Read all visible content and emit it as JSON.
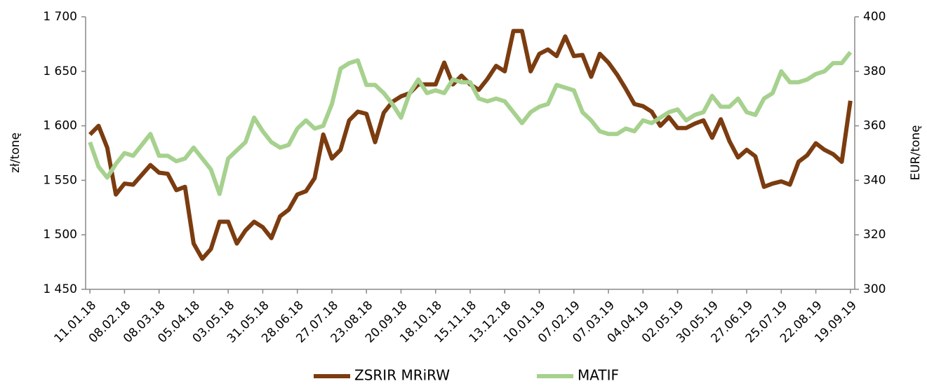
{
  "chart_data": {
    "type": "line",
    "categories": [
      "11.01.18",
      null,
      null,
      null,
      "08.02.18",
      null,
      null,
      null,
      "08.03.18",
      null,
      null,
      null,
      "05.04.18",
      null,
      null,
      null,
      "03.05.18",
      null,
      null,
      null,
      "31.05.18",
      null,
      null,
      null,
      "28.06.18",
      null,
      null,
      null,
      "27.07.18",
      null,
      null,
      null,
      "23.08.18",
      null,
      null,
      null,
      "20.09.18",
      null,
      null,
      null,
      "18.10.18",
      null,
      null,
      null,
      "15.11.18",
      null,
      null,
      null,
      "13.12.18",
      null,
      null,
      null,
      "10.01.19",
      null,
      null,
      null,
      "07.02.19",
      null,
      null,
      null,
      "07.03.19",
      null,
      null,
      null,
      "04.04.19",
      null,
      null,
      null,
      "02.05.19",
      null,
      null,
      null,
      "30.05.19",
      null,
      null,
      null,
      "27.06.19",
      null,
      null,
      null,
      "25.07.19",
      null,
      null,
      null,
      "22.08.19",
      null,
      null,
      null,
      "19.09.19"
    ],
    "series": [
      {
        "name": "ZSRIR MRiRW",
        "color": "#7b3c10",
        "axis": "y",
        "values": [
          1592,
          1600,
          1580,
          1537,
          1547,
          1546,
          1555,
          1564,
          1557,
          1556,
          1541,
          1544,
          1492,
          1478,
          1487,
          1512,
          1512,
          1492,
          1504,
          1512,
          1507,
          1497,
          1517,
          1523,
          1537,
          1540,
          1552,
          1592,
          1570,
          1578,
          1605,
          1613,
          1611,
          1585,
          1612,
          1622,
          1627,
          1630,
          1638,
          1638,
          1638,
          1658,
          1638,
          1646,
          1638,
          1633,
          1643,
          1655,
          1650,
          1687,
          1687,
          1650,
          1666,
          1670,
          1664,
          1682,
          1664,
          1665,
          1645,
          1666,
          1658,
          1647,
          1634,
          1620,
          1618,
          1613,
          1600,
          1608,
          1598,
          1598,
          1602,
          1605,
          1589,
          1606,
          1586,
          1571,
          1578,
          1572,
          1544,
          1547,
          1549,
          1546,
          1567,
          1573,
          1584,
          1578,
          1574,
          1567,
          1623
        ]
      },
      {
        "name": "MATIF",
        "color": "#a6d18e",
        "axis": "y2",
        "values": [
          354,
          345,
          341,
          346,
          350,
          349,
          353,
          357,
          349,
          349,
          347,
          348,
          352,
          348,
          344,
          335,
          348,
          351,
          354,
          363,
          358,
          354,
          352,
          353,
          359,
          362,
          359,
          360,
          368,
          381,
          383,
          384,
          375,
          375,
          372,
          368,
          363,
          372,
          377,
          372,
          373,
          372,
          377,
          376,
          376,
          370,
          369,
          370,
          369,
          365,
          361,
          365,
          367,
          368,
          375,
          374,
          373,
          365,
          362,
          358,
          357,
          357,
          359,
          358,
          362,
          361,
          363,
          365,
          366,
          362,
          364,
          365,
          371,
          367,
          367,
          370,
          365,
          364,
          370,
          372,
          380,
          376,
          376,
          377,
          379,
          380,
          383,
          383,
          387
        ]
      }
    ],
    "ylabel": "zł/tonę",
    "y2label": "EUR/tonę",
    "ylim": [
      1450,
      1700
    ],
    "yticks": [
      {
        "value": 1450,
        "label": "1 450"
      },
      {
        "value": 1500,
        "label": "1 500"
      },
      {
        "value": 1550,
        "label": "1 550"
      },
      {
        "value": 1600,
        "label": "1 600"
      },
      {
        "value": 1650,
        "label": "1 650"
      },
      {
        "value": 1700,
        "label": "1 700"
      }
    ],
    "y2lim": [
      300,
      400
    ],
    "y2ticks": [
      300,
      320,
      340,
      360,
      380,
      400
    ],
    "grid": false,
    "legend": "bottom"
  }
}
